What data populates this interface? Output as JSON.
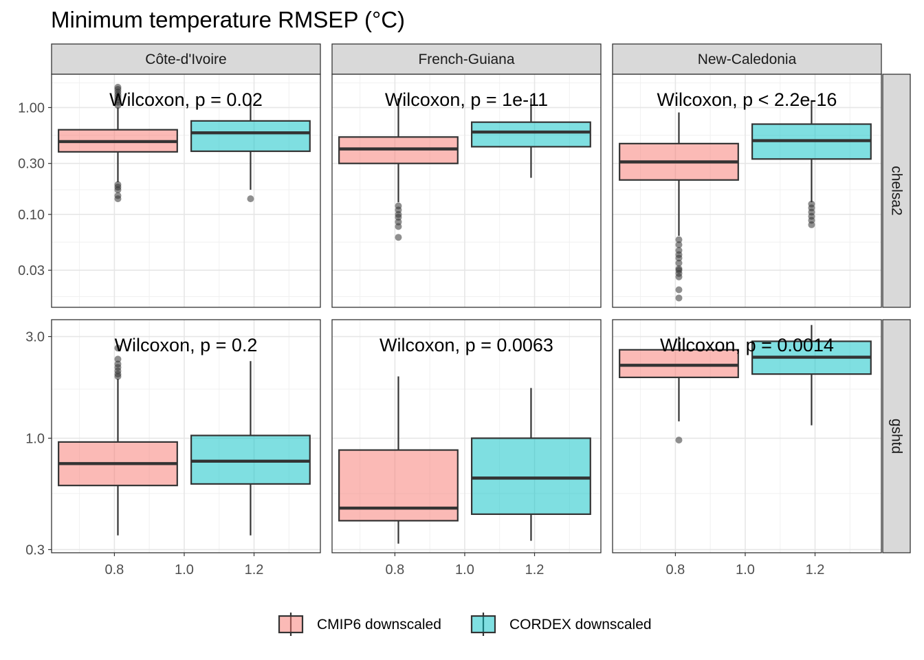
{
  "chart_data": {
    "type": "boxplot",
    "title": "Minimum temperature RMSEP (°C)",
    "xlabel": "",
    "ylabel": "",
    "x_ticks": [
      0.8,
      1.0,
      1.2
    ],
    "x_tick_labels": [
      "0.8",
      "1.0",
      "1.2"
    ],
    "xlim": [
      0.62,
      1.39
    ],
    "y_scale": "log10",
    "grid": true,
    "legend_position": "bottom",
    "series": [
      {
        "name": "CMIP6 downscaled",
        "x": 0.81,
        "color": "#F8766D"
      },
      {
        "name": "CORDEX downscaled",
        "x": 1.19,
        "color": "#00BFC4"
      }
    ],
    "columns": [
      "Côte-d'Ivoire",
      "French-Guiana",
      "New-Caledonia"
    ],
    "rows": [
      {
        "name": "chelsa2",
        "ylim": [
          0.0135,
          2.05
        ],
        "y_ticks": [
          0.03,
          0.1,
          0.3,
          1.0
        ],
        "y_tick_labels": [
          "0.03",
          "0.10",
          "0.30",
          "1.00"
        ],
        "minor_ticks": [
          0.017,
          0.055,
          0.17,
          0.55,
          1.7
        ],
        "panels": [
          {
            "annotation": "Wilcoxon, p = 0.02",
            "boxes": [
              {
                "series": 0,
                "whisker_low": 0.2,
                "q1": 0.385,
                "median": 0.48,
                "q3": 0.62,
                "whisker_high": 1.0,
                "outliers": [
                  0.14,
                  0.15,
                  0.17,
                  0.18,
                  0.19,
                  1.05,
                  1.12,
                  1.18,
                  1.25,
                  1.32,
                  1.4,
                  1.48,
                  1.55
                ]
              },
              {
                "series": 1,
                "whisker_low": 0.17,
                "q1": 0.39,
                "median": 0.58,
                "q3": 0.75,
                "whisker_high": 1.2,
                "outliers": [
                  0.14
                ]
              }
            ]
          },
          {
            "annotation": "Wilcoxon, p = 1e-11",
            "boxes": [
              {
                "series": 0,
                "whisker_low": 0.13,
                "q1": 0.3,
                "median": 0.41,
                "q3": 0.53,
                "whisker_high": 1.22,
                "outliers": [
                  0.061,
                  0.077,
                  0.085,
                  0.094,
                  0.1,
                  0.11,
                  0.12
                ]
              },
              {
                "series": 1,
                "whisker_low": 0.22,
                "q1": 0.43,
                "median": 0.59,
                "q3": 0.73,
                "whisker_high": 1.22,
                "outliers": []
              }
            ]
          },
          {
            "annotation": "Wilcoxon, p < 2.2e-16",
            "boxes": [
              {
                "series": 0,
                "whisker_low": 0.063,
                "q1": 0.21,
                "median": 0.31,
                "q3": 0.46,
                "whisker_high": 0.9,
                "outliers": [
                  0.0165,
                  0.0197,
                  0.026,
                  0.028,
                  0.03,
                  0.031,
                  0.035,
                  0.039,
                  0.042,
                  0.046,
                  0.052,
                  0.058
                ]
              },
              {
                "series": 1,
                "whisker_low": 0.13,
                "q1": 0.33,
                "median": 0.49,
                "q3": 0.7,
                "whisker_high": 1.17,
                "outliers": [
                  0.08,
                  0.088,
                  0.096,
                  0.105,
                  0.115,
                  0.125
                ]
              }
            ]
          }
        ]
      },
      {
        "name": "gshtd",
        "ylim": [
          0.29,
          3.6
        ],
        "y_ticks": [
          0.3,
          1.0,
          3.0
        ],
        "y_tick_labels": [
          "0.3",
          "1.0",
          "3.0"
        ],
        "minor_ticks": [
          0.55,
          1.7
        ],
        "panels": [
          {
            "annotation": "Wilcoxon, p = 0.2",
            "boxes": [
              {
                "series": 0,
                "whisker_low": 0.35,
                "q1": 0.6,
                "median": 0.76,
                "q3": 0.96,
                "whisker_high": 1.9,
                "outliers": [
                  1.95,
                  2.0,
                  2.07,
                  2.15,
                  2.23,
                  2.35,
                  2.65
                ]
              },
              {
                "series": 1,
                "whisker_low": 0.35,
                "q1": 0.61,
                "median": 0.78,
                "q3": 1.03,
                "whisker_high": 2.3,
                "outliers": []
              }
            ]
          },
          {
            "annotation": "Wilcoxon, p = 0.0063",
            "boxes": [
              {
                "series": 0,
                "whisker_low": 0.32,
                "q1": 0.41,
                "median": 0.47,
                "q3": 0.88,
                "whisker_high": 1.95,
                "outliers": []
              },
              {
                "series": 1,
                "whisker_low": 0.33,
                "q1": 0.44,
                "median": 0.65,
                "q3": 1.0,
                "whisker_high": 1.72,
                "outliers": []
              }
            ]
          },
          {
            "annotation": "Wilcoxon, p = 0.0014",
            "boxes": [
              {
                "series": 0,
                "whisker_low": 1.2,
                "q1": 1.93,
                "median": 2.2,
                "q3": 2.6,
                "whisker_high": 3.0,
                "outliers": [
                  0.98
                ]
              },
              {
                "series": 1,
                "whisker_low": 1.15,
                "q1": 2.0,
                "median": 2.4,
                "q3": 2.85,
                "whisker_high": 3.4,
                "outliers": []
              }
            ]
          }
        ]
      }
    ]
  }
}
